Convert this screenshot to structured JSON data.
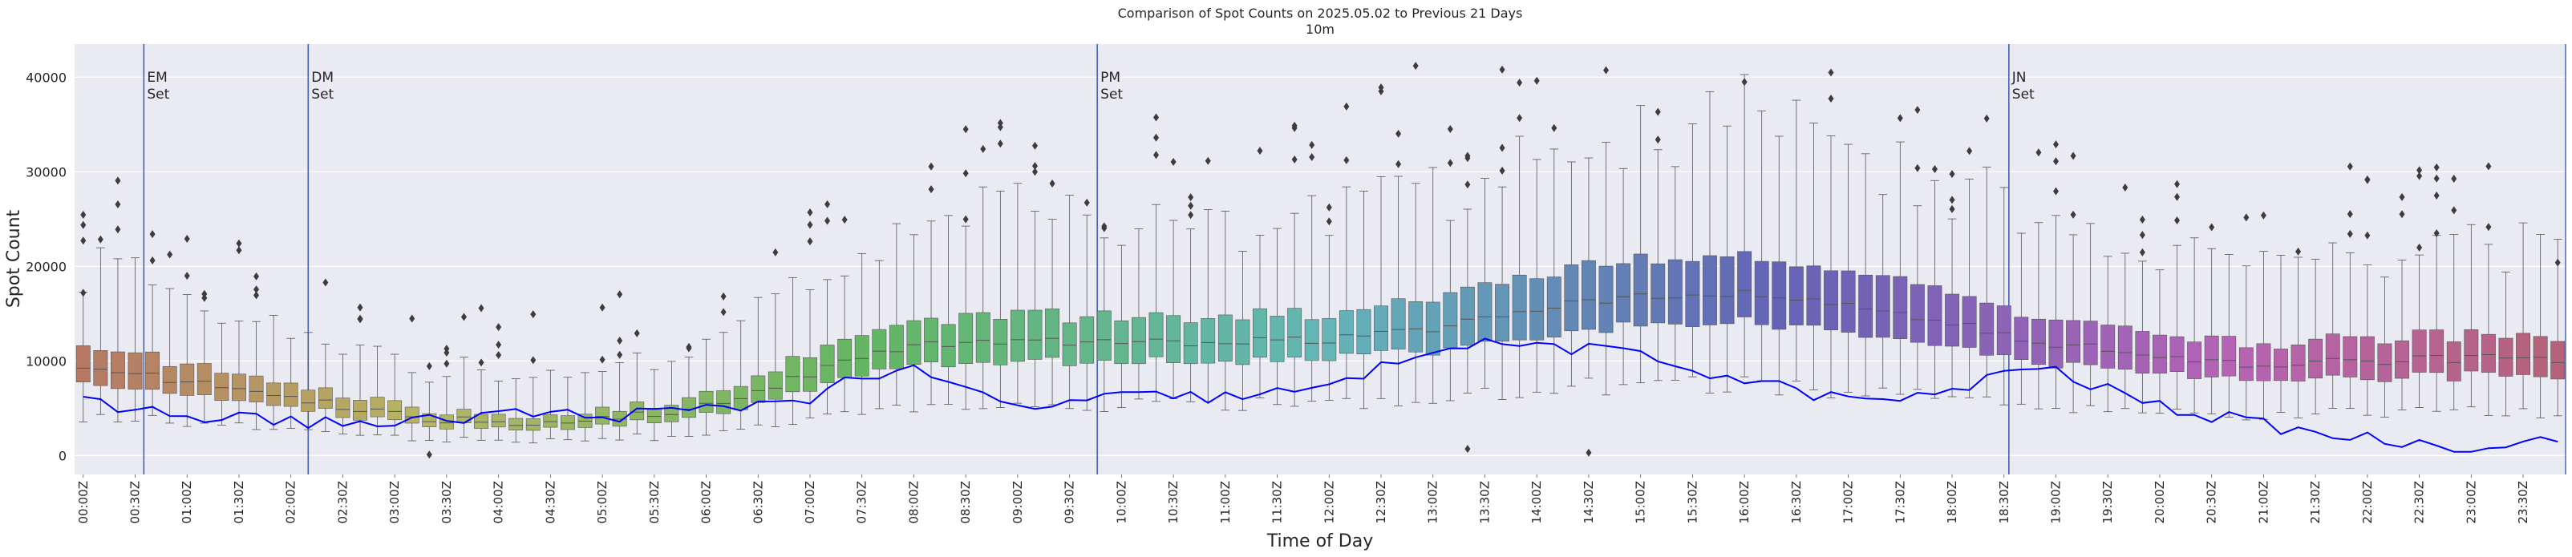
{
  "chart_data": {
    "type": "box",
    "title": "Comparison of Spot Counts on 2025.05.02 to Previous 21 Days",
    "subtitle": "10m",
    "xlabel": "Time of Day",
    "ylabel": "Spot Count",
    "ylim": [
      -2000,
      43500
    ],
    "yticks": [
      0,
      10000,
      20000,
      30000,
      40000
    ],
    "grid": true,
    "bins_per_day": 144,
    "tick_labels": [
      "00:00Z",
      "00:30Z",
      "01:00Z",
      "01:30Z",
      "02:00Z",
      "02:30Z",
      "03:00Z",
      "03:30Z",
      "04:00Z",
      "04:30Z",
      "05:00Z",
      "05:30Z",
      "06:00Z",
      "06:30Z",
      "07:00Z",
      "07:30Z",
      "08:00Z",
      "08:30Z",
      "09:00Z",
      "09:30Z",
      "10:00Z",
      "10:30Z",
      "11:00Z",
      "11:30Z",
      "12:00Z",
      "12:30Z",
      "13:00Z",
      "13:30Z",
      "14:00Z",
      "14:30Z",
      "15:00Z",
      "15:30Z",
      "16:00Z",
      "16:30Z",
      "17:00Z",
      "17:30Z",
      "18:00Z",
      "18:30Z",
      "19:00Z",
      "19:30Z",
      "20:00Z",
      "20:30Z",
      "21:00Z",
      "21:30Z",
      "22:00Z",
      "22:30Z",
      "23:00Z",
      "23:30Z"
    ],
    "median_anchors": {
      "hours": [
        0,
        1,
        2,
        3,
        4,
        5,
        6,
        7,
        8,
        9,
        10,
        11,
        12,
        13,
        14,
        15,
        16,
        17,
        18,
        19,
        20,
        21,
        22,
        23,
        24
      ],
      "values": [
        9600,
        7700,
        6300,
        4300,
        3300,
        3900,
        5200,
        8700,
        11600,
        12100,
        12000,
        12000,
        12200,
        13300,
        15500,
        16800,
        17300,
        15700,
        14000,
        11800,
        10500,
        9600,
        10000,
        10300,
        10100
      ]
    },
    "today_anchors": {
      "hours": [
        0,
        1,
        2,
        3,
        4,
        5,
        6,
        7,
        7.5,
        8,
        9,
        10,
        11,
        12,
        12.5,
        13,
        14,
        15,
        16,
        17,
        18,
        18.6,
        19,
        20,
        21,
        22,
        23,
        23.5,
        24
      ],
      "values": [
        5500,
        4200,
        3700,
        3200,
        4500,
        4200,
        4800,
        6200,
        8500,
        8800,
        5000,
        6200,
        6200,
        7000,
        9300,
        11500,
        11800,
        10500,
        8000,
        5800,
        6400,
        9600,
        8700,
        5200,
        3200,
        1800,
        900,
        1500,
        1700
      ]
    },
    "today_series_name": "2025.05.02",
    "outlier_peaks": [
      {
        "time": "00:00Z",
        "value": 17200
      },
      {
        "time": "03:20Z",
        "value": 100
      },
      {
        "time": "08:30Z",
        "value": 34500
      },
      {
        "time": "12:50Z",
        "value": 41200
      },
      {
        "time": "13:20Z",
        "value": 700
      },
      {
        "time": "13:40Z",
        "value": 40800
      },
      {
        "time": "14:30Z",
        "value": 300
      },
      {
        "time": "16:00Z",
        "value": 39500
      },
      {
        "time": "22:40Z",
        "value": 23500
      },
      {
        "time": "23:50Z",
        "value": 20400
      }
    ],
    "markers": [
      {
        "label_top": "EM",
        "label_bottom": "Set",
        "hour": 0.667
      },
      {
        "label_top": "DM",
        "label_bottom": "Set",
        "hour": 2.25
      },
      {
        "label_top": "PM",
        "label_bottom": "Set",
        "hour": 9.85
      },
      {
        "label_top": "JN",
        "label_bottom": "Set",
        "hour": 18.63
      }
    ],
    "colors": {
      "today_line": "#0000ff",
      "marker_line": "#4461b8",
      "plot_background": "#eaeaf2",
      "grid": "#ffffff"
    }
  }
}
